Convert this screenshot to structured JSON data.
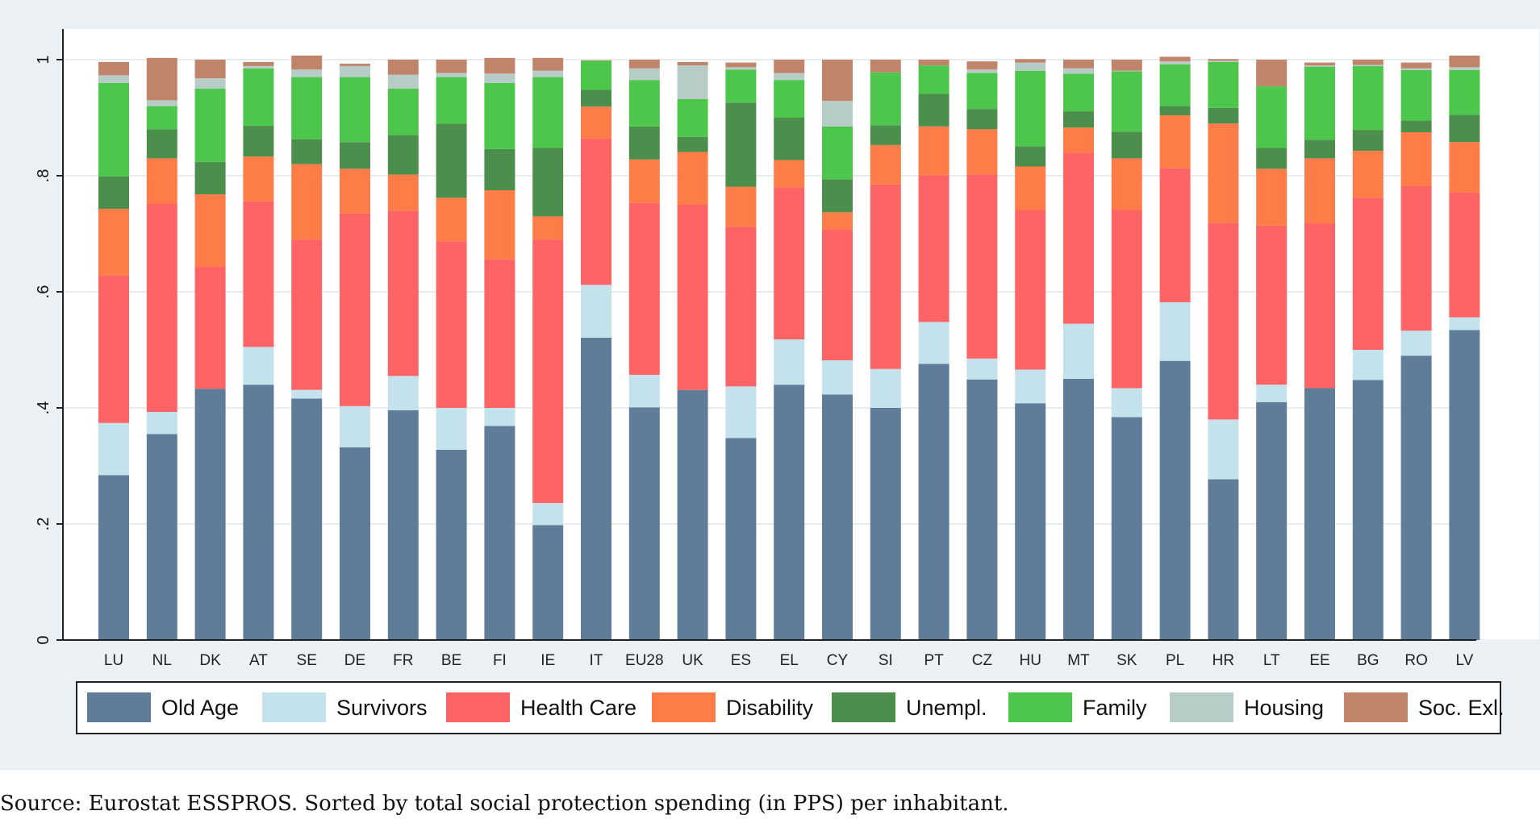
{
  "chart_data": {
    "type": "bar",
    "stacked": true,
    "title": "",
    "xlabel": "",
    "ylabel": "",
    "ylim": [
      0,
      1.05
    ],
    "yticks": [
      0,
      0.2,
      0.4,
      0.6,
      0.8,
      1
    ],
    "ytick_labels": [
      "0",
      ".2",
      ".4",
      ".6",
      ".8",
      "1"
    ],
    "grid": true,
    "legend_position": "bottom",
    "categories": [
      "LU",
      "NL",
      "DK",
      "AT",
      "SE",
      "DE",
      "FR",
      "BE",
      "FI",
      "IE",
      "IT",
      "EU28",
      "UK",
      "ES",
      "EL",
      "CY",
      "SI",
      "PT",
      "CZ",
      "HU",
      "MT",
      "SK",
      "PL",
      "HR",
      "LT",
      "EE",
      "BG",
      "RO",
      "LV"
    ],
    "series": [
      {
        "name": "Old Age",
        "color": "#5f7d99",
        "values": [
          0.284,
          0.355,
          0.433,
          0.44,
          0.416,
          0.332,
          0.396,
          0.328,
          0.369,
          0.198,
          0.521,
          0.401,
          0.431,
          0.348,
          0.44,
          0.423,
          0.4,
          0.476,
          0.449,
          0.408,
          0.45,
          0.384,
          0.481,
          0.277,
          0.41,
          0.434,
          0.448,
          0.49,
          0.534
        ]
      },
      {
        "name": "Survivors",
        "color": "#c4e2ec",
        "values": [
          0.09,
          0.038,
          0.0,
          0.065,
          0.015,
          0.071,
          0.059,
          0.072,
          0.031,
          0.038,
          0.091,
          0.056,
          0.0,
          0.089,
          0.078,
          0.059,
          0.067,
          0.072,
          0.036,
          0.058,
          0.095,
          0.05,
          0.101,
          0.103,
          0.03,
          0.0,
          0.052,
          0.043,
          0.022
        ]
      },
      {
        "name": "Health Care",
        "color": "#fe6465",
        "values": [
          0.254,
          0.359,
          0.21,
          0.251,
          0.259,
          0.332,
          0.285,
          0.287,
          0.256,
          0.454,
          0.252,
          0.296,
          0.319,
          0.275,
          0.262,
          0.225,
          0.318,
          0.253,
          0.317,
          0.275,
          0.295,
          0.307,
          0.231,
          0.339,
          0.274,
          0.284,
          0.262,
          0.249,
          0.215
        ]
      },
      {
        "name": "Disability",
        "color": "#fe7c48",
        "values": [
          0.115,
          0.078,
          0.125,
          0.077,
          0.13,
          0.077,
          0.062,
          0.075,
          0.119,
          0.04,
          0.055,
          0.075,
          0.091,
          0.069,
          0.047,
          0.03,
          0.068,
          0.084,
          0.078,
          0.075,
          0.043,
          0.089,
          0.091,
          0.171,
          0.098,
          0.112,
          0.081,
          0.093,
          0.087
        ]
      },
      {
        "name": "Unempl.",
        "color": "#4c8e4b",
        "values": [
          0.056,
          0.05,
          0.056,
          0.053,
          0.043,
          0.046,
          0.068,
          0.128,
          0.071,
          0.118,
          0.029,
          0.057,
          0.026,
          0.145,
          0.073,
          0.057,
          0.034,
          0.056,
          0.035,
          0.035,
          0.028,
          0.046,
          0.016,
          0.027,
          0.036,
          0.032,
          0.036,
          0.02,
          0.047
        ]
      },
      {
        "name": "Family",
        "color": "#4dc74b",
        "values": [
          0.161,
          0.04,
          0.126,
          0.099,
          0.107,
          0.112,
          0.08,
          0.08,
          0.114,
          0.122,
          0.05,
          0.08,
          0.065,
          0.057,
          0.065,
          0.091,
          0.091,
          0.049,
          0.062,
          0.13,
          0.065,
          0.104,
          0.072,
          0.079,
          0.106,
          0.126,
          0.11,
          0.087,
          0.077
        ]
      },
      {
        "name": "Housing",
        "color": "#b7cbc7",
        "values": [
          0.013,
          0.01,
          0.018,
          0.004,
          0.013,
          0.019,
          0.024,
          0.007,
          0.016,
          0.011,
          0.0,
          0.02,
          0.058,
          0.004,
          0.012,
          0.044,
          0.0,
          0.0,
          0.006,
          0.014,
          0.009,
          0.001,
          0.005,
          0.002,
          0.0,
          0.002,
          0.002,
          0.003,
          0.005
        ]
      },
      {
        "name": "Soc. Exl.",
        "color": "#bf8469",
        "values": [
          0.023,
          0.073,
          0.032,
          0.007,
          0.024,
          0.004,
          0.026,
          0.023,
          0.027,
          0.022,
          0.001,
          0.015,
          0.006,
          0.008,
          0.023,
          0.071,
          0.022,
          0.01,
          0.014,
          0.006,
          0.015,
          0.019,
          0.008,
          0.003,
          0.046,
          0.005,
          0.009,
          0.01,
          0.02
        ]
      }
    ],
    "caption": "Source: Eurostat ESSPROS. Sorted by total social protection spending (in PPS) per inhabitant."
  }
}
